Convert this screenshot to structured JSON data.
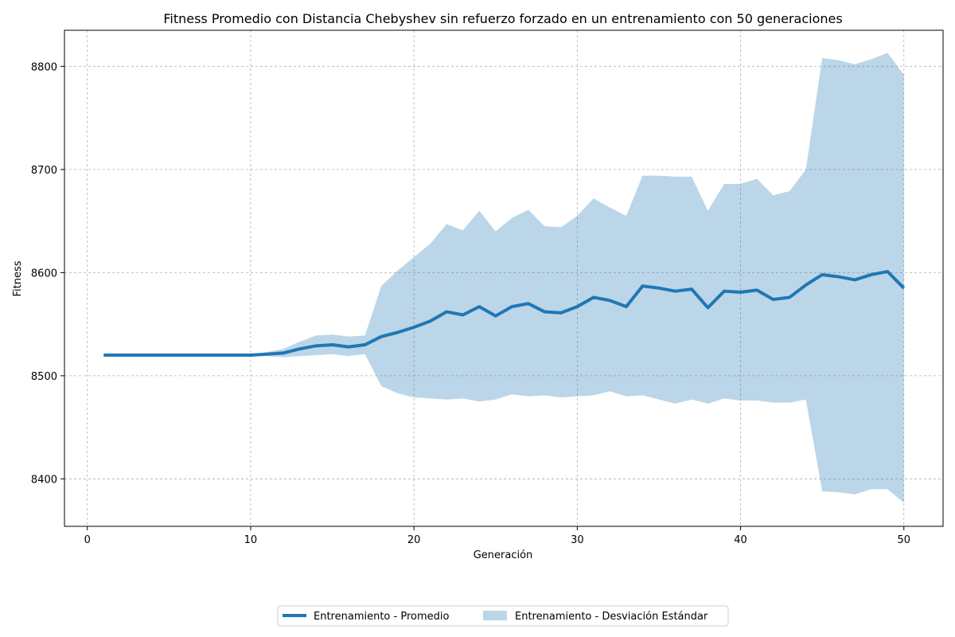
{
  "chart_data": {
    "type": "line",
    "title": "Fitness Promedio con Distancia Chebyshev sin refuerzo forzado en un entrenamiento con 50 generaciones",
    "xlabel": "Generación",
    "ylabel": "Fitness",
    "xlim": [
      -1.4,
      52.4
    ],
    "ylim": [
      8354,
      8835
    ],
    "xticks": [
      0,
      10,
      20,
      30,
      40,
      50
    ],
    "yticks": [
      8400,
      8500,
      8600,
      8700,
      8800
    ],
    "grid": true,
    "legend": "bottom-center",
    "x": [
      1,
      2,
      3,
      4,
      5,
      6,
      7,
      8,
      9,
      10,
      11,
      12,
      13,
      14,
      15,
      16,
      17,
      18,
      19,
      20,
      21,
      22,
      23,
      24,
      25,
      26,
      27,
      28,
      29,
      30,
      31,
      32,
      33,
      34,
      35,
      36,
      37,
      38,
      39,
      40,
      41,
      42,
      43,
      44,
      45,
      46,
      47,
      48,
      49,
      50
    ],
    "series": [
      {
        "name": "Entrenamiento  - Promedio",
        "kind": "line",
        "color": "#1f77b4",
        "values": [
          8520,
          8520,
          8520,
          8520,
          8520,
          8520,
          8520,
          8520,
          8520,
          8520,
          8521,
          8522,
          8526,
          8529,
          8530,
          8528,
          8530,
          8538,
          8542,
          8547,
          8553,
          8562,
          8559,
          8567,
          8558,
          8567,
          8570,
          8562,
          8561,
          8567,
          8576,
          8573,
          8567,
          8587,
          8585,
          8582,
          8584,
          8566,
          8582,
          8581,
          8583,
          8574,
          8576,
          8588,
          8598,
          8596,
          8593,
          8598,
          8601,
          8585
        ]
      },
      {
        "name": "Entrenamiento  - Desviación Estándar",
        "kind": "band",
        "color": "#1f77b4",
        "opacity": 0.3,
        "upper": [
          8520,
          8520,
          8520,
          8520,
          8520,
          8520,
          8520,
          8520,
          8520,
          8520,
          8523,
          8526,
          8533,
          8539,
          8540,
          8538,
          8539,
          8587,
          8602,
          8615,
          8628,
          8647,
          8641,
          8660,
          8640,
          8653,
          8661,
          8645,
          8644,
          8655,
          8672,
          8663,
          8655,
          8694,
          8694,
          8693,
          8693,
          8660,
          8686,
          8686,
          8691,
          8675,
          8679,
          8700,
          8808,
          8806,
          8802,
          8807,
          8813,
          8792
        ],
        "lower": [
          8520,
          8520,
          8520,
          8520,
          8520,
          8520,
          8520,
          8520,
          8520,
          8520,
          8519,
          8518,
          8519,
          8520,
          8521,
          8519,
          8521,
          8490,
          8483,
          8479,
          8478,
          8477,
          8478,
          8475,
          8477,
          8482,
          8480,
          8481,
          8479,
          8480,
          8481,
          8485,
          8480,
          8481,
          8477,
          8473,
          8477,
          8473,
          8478,
          8476,
          8476,
          8474,
          8474,
          8477,
          8388,
          8387,
          8385,
          8390,
          8390,
          8377
        ]
      }
    ]
  }
}
